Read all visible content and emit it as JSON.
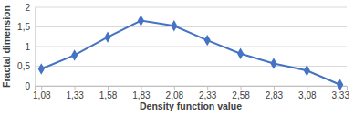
{
  "chart_data": {
    "type": "line",
    "x_label": "Density function value",
    "y_label": "Fractal dimension",
    "categories": [
      "1,08",
      "1,33",
      "1,58",
      "1,83",
      "2,08",
      "2,33",
      "2,58",
      "2,83",
      "3,08",
      "3,33"
    ],
    "values": [
      0.43,
      0.78,
      1.24,
      1.66,
      1.53,
      1.16,
      0.82,
      0.57,
      0.39,
      0.03
    ],
    "color": "#4472c4",
    "marker": "diamond",
    "line_style": "solid",
    "ylim": [
      0,
      2
    ],
    "yticks": [
      0,
      {
        "value": 0.5,
        "label": "0,5"
      },
      1,
      {
        "value": 1.5,
        "label": "1,5"
      },
      2
    ],
    "grid": true
  }
}
